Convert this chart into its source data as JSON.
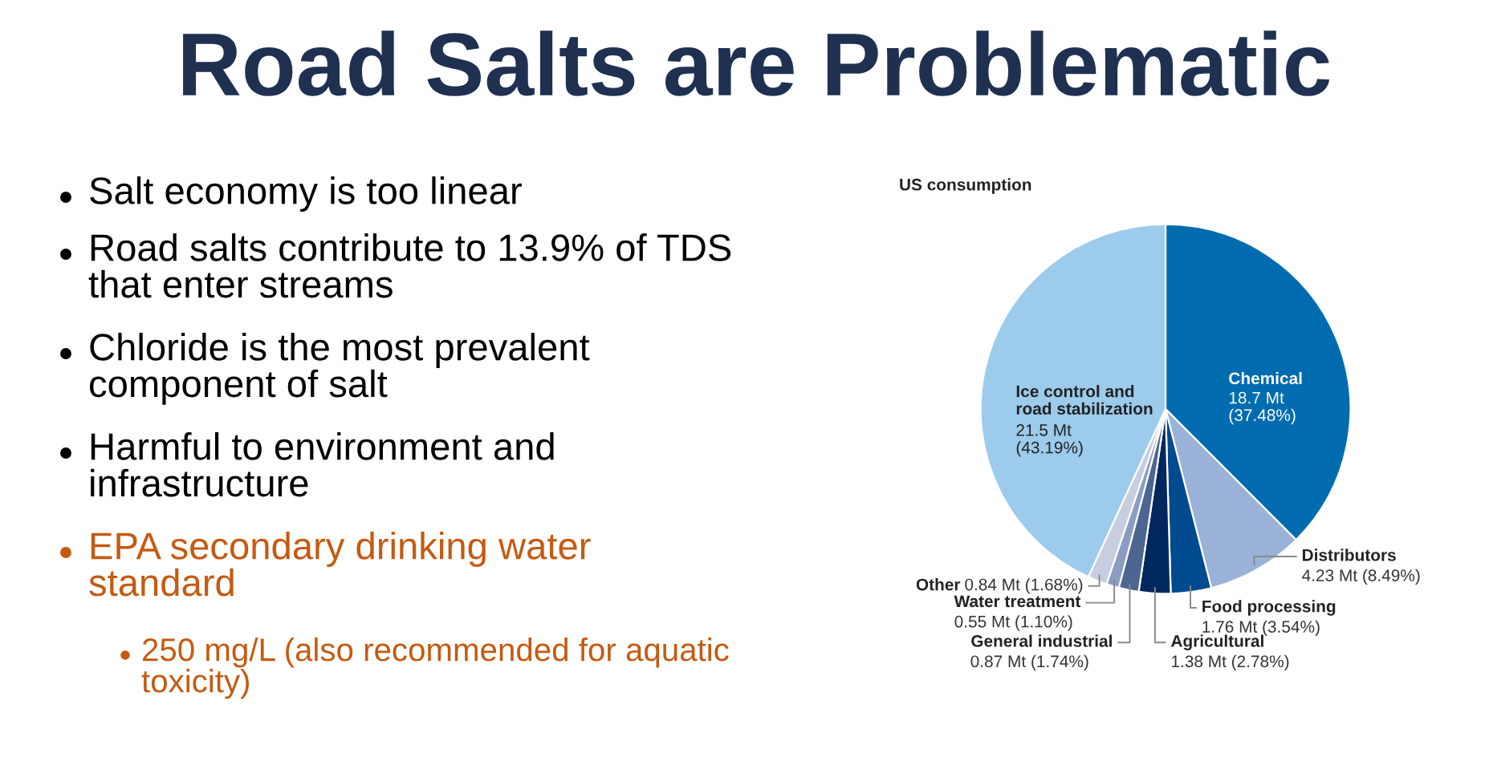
{
  "chart_data": {
    "type": "pie",
    "title": "Road Salts are Problematic",
    "subtitle": "US consumption",
    "categories": [
      "Chemical",
      "Distributors",
      "Food processing",
      "Agricultural",
      "General industrial",
      "Water treatment",
      "Other",
      "Ice control and road stabilization"
    ],
    "values": [
      18.7,
      4.23,
      1.76,
      1.38,
      0.87,
      0.55,
      0.84,
      21.5
    ],
    "value_labels": [
      "18.7 Mt (37.48%)",
      "4.23 Mt (8.49%)",
      "1.76 Mt (3.54%)",
      "1.38 Mt (2.78%)",
      "0.87 Mt (1.74%)",
      "0.55 Mt (1.10%)",
      "0.84 Mt (1.68%)",
      "21.5 Mt (43.19%)"
    ],
    "colors": [
      "#006cb0",
      "#9ab2d8",
      "#004a8f",
      "#00285e",
      "#4d6591",
      "#8a9cc2",
      "#c9cde0",
      "#9ccbec"
    ],
    "annotations": [
      "Salt economy is too linear",
      "Road salts contribute to 13.9% of TDS\nthat enter streams",
      "Chloride is the most prevalent\ncomponent of salt",
      "Harmful to environment and\ninfrastructure",
      "EPA secondary drinking water\nstandard",
      "250 mg/L (also recommended for aquatic\ntoxicity)"
    ]
  }
}
